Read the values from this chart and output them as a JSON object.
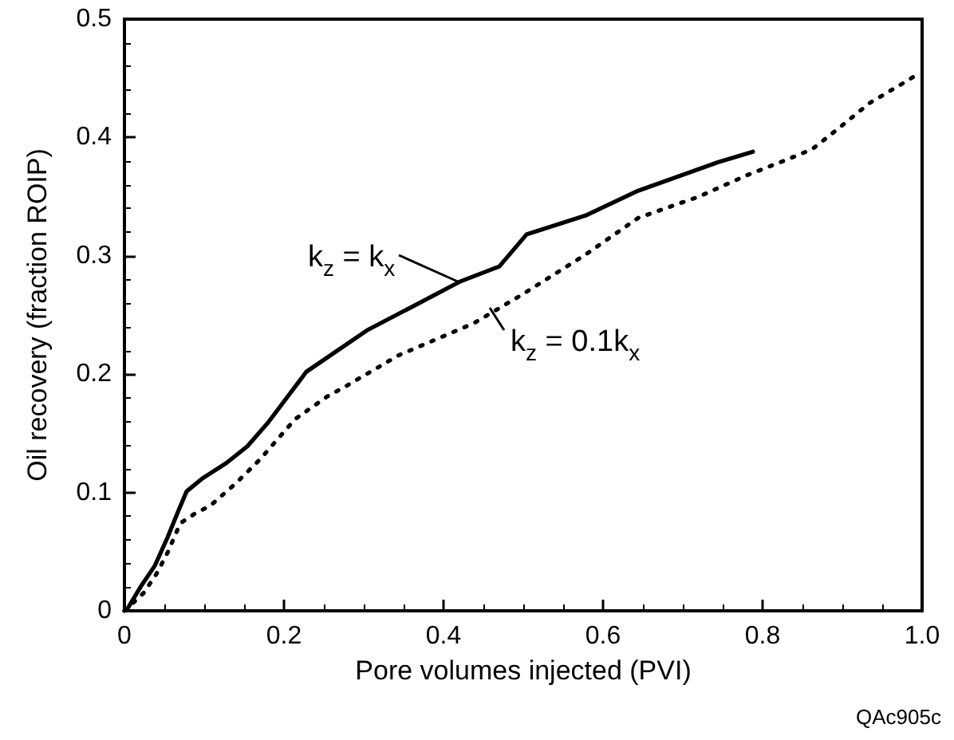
{
  "chart_data": {
    "type": "line",
    "xlabel": "Pore volumes injected (PVI)",
    "ylabel": "Oil recovery (fraction ROIP)",
    "xlim": [
      0,
      1
    ],
    "xticks": [
      0,
      0.2,
      0.4,
      0.6,
      0.8,
      {
        "value": 1,
        "label": "1.0"
      }
    ],
    "ylim": [
      0,
      0.5
    ],
    "yticks": [
      0,
      0.1,
      0.2,
      0.3,
      0.4,
      0.5
    ],
    "grid": false,
    "marker": "none",
    "series": [
      {
        "name": "k$_{z}$ = k$_{x}$",
        "color": "#000000",
        "line_style": "solid",
        "x": [
          0,
          0.004,
          0.02,
          0.038,
          0.054,
          0.068,
          0.078,
          0.098,
          0.128,
          0.154,
          0.18,
          0.218,
          0.228,
          0.304,
          0.358,
          0.42,
          0.47,
          0.504,
          0.578,
          0.644,
          0.744,
          0.788
        ],
        "values": [
          0,
          0.002,
          0.02,
          0.038,
          0.062,
          0.085,
          0.101,
          0.112,
          0.125,
          0.139,
          0.159,
          0.193,
          0.202,
          0.237,
          0.256,
          0.278,
          0.291,
          0.318,
          0.334,
          0.355,
          0.379,
          0.388
        ]
      },
      {
        "name": "k$_{z}$ = 0.1k$_{x}$",
        "color": "#000000",
        "line_style": "dotted",
        "x": [
          0,
          0.024,
          0.04,
          0.054,
          0.07,
          0.088,
          0.108,
          0.14,
          0.17,
          0.214,
          0.254,
          0.278,
          0.344,
          0.438,
          0.498,
          0.578,
          0.644,
          0.72,
          0.78,
          0.822,
          0.862,
          0.894,
          0.934,
          0.974,
          0.996
        ],
        "values": [
          0,
          0.015,
          0.031,
          0.049,
          0.074,
          0.082,
          0.089,
          0.108,
          0.128,
          0.162,
          0.181,
          0.19,
          0.216,
          0.243,
          0.267,
          0.301,
          0.332,
          0.35,
          0.368,
          0.379,
          0.39,
          0.407,
          0.429,
          0.445,
          0.454
        ]
      }
    ],
    "annotations": [
      "QAc905c"
    ]
  }
}
